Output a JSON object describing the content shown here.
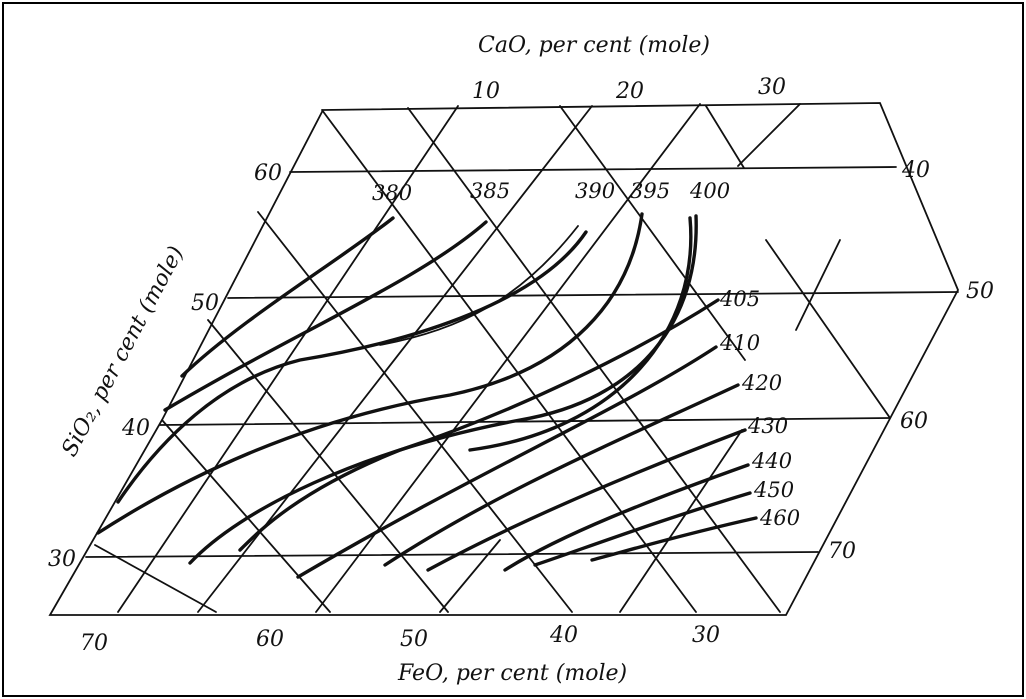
{
  "axes": {
    "cao": {
      "title": "CaO, per cent (mole)",
      "ticks": [
        "10",
        "20",
        "30"
      ]
    },
    "sio2": {
      "title": "SiO₂, per cent (mole)",
      "ticks": [
        "60",
        "50",
        "40",
        "30"
      ]
    },
    "feo": {
      "title": "FeO, per cent (mole)",
      "ticks": [
        "70",
        "60",
        "50",
        "40",
        "30"
      ]
    },
    "right": {
      "ticks": [
        "40",
        "50",
        "60",
        "70"
      ]
    }
  },
  "isotherms": [
    "380",
    "385",
    "390",
    "395",
    "400",
    "405",
    "410",
    "420",
    "430",
    "440",
    "450",
    "460"
  ]
}
